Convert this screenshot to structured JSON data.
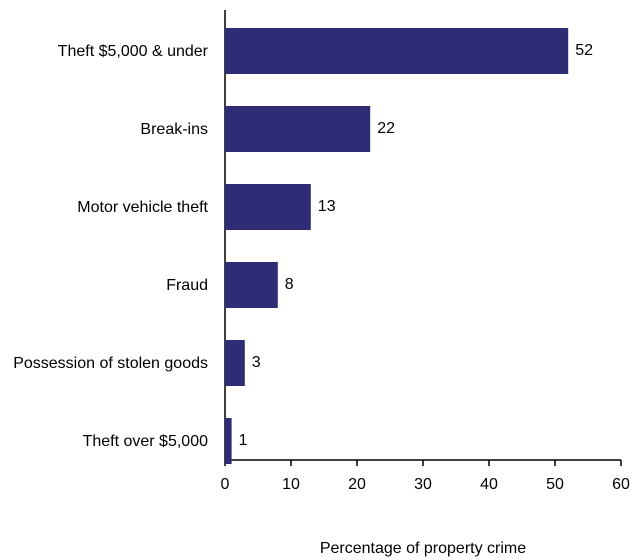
{
  "chart_data": {
    "type": "bar",
    "categories": [
      "Theft $5,000 & under",
      "Break-ins",
      "Motor vehicle theft",
      "Fraud",
      "Possession of stolen goods",
      "Theft over $5,000"
    ],
    "values": [
      52,
      22,
      13,
      8,
      3,
      1
    ],
    "color": "#2e2c74",
    "xlim": [
      0,
      60
    ],
    "xticks": [
      0,
      10,
      20,
      30,
      40,
      50,
      60
    ],
    "xlabel": "Percentage of property crime"
  }
}
